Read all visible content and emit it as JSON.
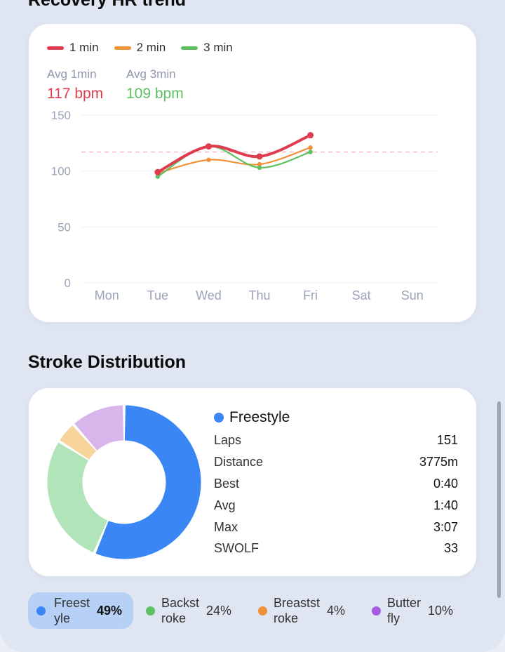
{
  "recovery": {
    "title": "Recovery HR trend",
    "legend": [
      {
        "label": "1 min",
        "color": "#e03c4f"
      },
      {
        "label": "2 min",
        "color": "#f0923a"
      },
      {
        "label": "3 min",
        "color": "#5fc061"
      }
    ],
    "avg1": {
      "label": "Avg 1min",
      "value": "117 bpm",
      "color": "#e03c4f"
    },
    "avg3": {
      "label": "Avg 3min",
      "value": "109 bpm",
      "color": "#5fc061"
    }
  },
  "chart_data": {
    "type": "line",
    "categories": [
      "Mon",
      "Tue",
      "Wed",
      "Thu",
      "Fri",
      "Sat",
      "Sun"
    ],
    "yticks": [
      0,
      50,
      100,
      150
    ],
    "ylim": [
      0,
      150
    ],
    "reference_line": 117,
    "series": [
      {
        "name": "1 min",
        "color": "#e03c4f",
        "x": [
          1.5,
          2.5,
          3.5,
          4.5
        ],
        "values": [
          99,
          122,
          113,
          132
        ]
      },
      {
        "name": "2 min",
        "color": "#f0923a",
        "x": [
          1.5,
          2.5,
          3.5,
          4.5
        ],
        "values": [
          98,
          110,
          106,
          121
        ]
      },
      {
        "name": "3 min",
        "color": "#5fc061",
        "x": [
          1.5,
          2.5,
          3.5,
          4.5
        ],
        "values": [
          95,
          122,
          103,
          117
        ]
      }
    ]
  },
  "stroke": {
    "title": "Stroke Distribution",
    "selected": {
      "name": "Freestyle",
      "color": "#3a86f5"
    },
    "stats": [
      {
        "label": "Laps",
        "value": "151"
      },
      {
        "label": "Distance",
        "value": "3775m"
      },
      {
        "label": "Best",
        "value": "0:40"
      },
      {
        "label": "Avg",
        "value": "1:40"
      },
      {
        "label": "Max",
        "value": "3:07"
      },
      {
        "label": "SWOLF",
        "value": "33"
      }
    ],
    "slices": [
      {
        "name": "Freestyle",
        "pct": 49,
        "color": "#3a86f5"
      },
      {
        "name": "Backstroke",
        "pct": 24,
        "color": "#b1e5b9"
      },
      {
        "name": "Breaststroke",
        "pct": 4,
        "color": "#f6d49c"
      },
      {
        "name": "Butterfly",
        "pct": 10,
        "color": "#d8b6ec"
      }
    ],
    "legend": [
      {
        "line1": "Freest",
        "line2": "yle",
        "pct": "49%",
        "dot": "#3a86f5",
        "selected": true
      },
      {
        "line1": "Backst",
        "line2": "roke",
        "pct": "24%",
        "dot": "#5fc061"
      },
      {
        "line1": "Breastst",
        "line2": "roke",
        "pct": "4%",
        "dot": "#f0923a"
      },
      {
        "line1": "Butter",
        "line2": "fly",
        "pct": "10%",
        "dot": "#a45be0"
      }
    ]
  }
}
